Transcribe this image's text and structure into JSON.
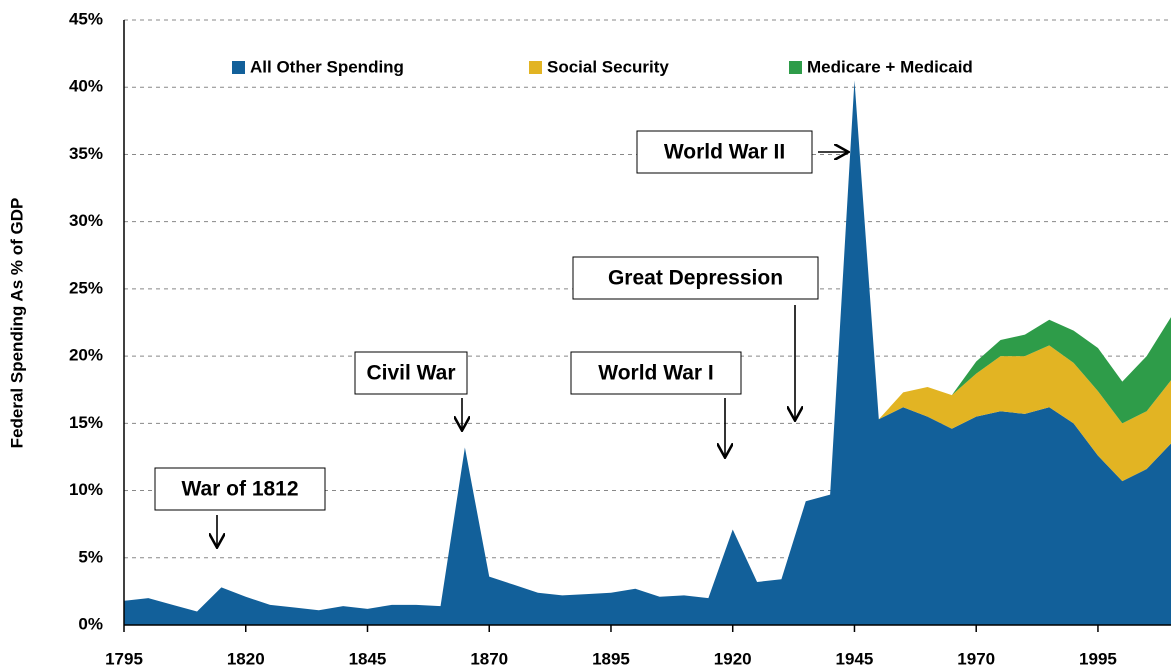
{
  "chart_data": {
    "type": "stacked_area",
    "y_label": "Federal Spending As % of GDP",
    "x": [
      1795,
      1800,
      1805,
      1810,
      1815,
      1820,
      1825,
      1830,
      1835,
      1840,
      1845,
      1850,
      1855,
      1860,
      1865,
      1870,
      1875,
      1880,
      1885,
      1890,
      1895,
      1900,
      1905,
      1910,
      1915,
      1920,
      1925,
      1930,
      1935,
      1940,
      1945,
      1950,
      1955,
      1960,
      1965,
      1970,
      1975,
      1980,
      1985,
      1990,
      1995,
      2000,
      2005,
      2010
    ],
    "series": [
      {
        "name": "All Other Spending",
        "color": "#12609a",
        "values": [
          1.8,
          2.0,
          1.5,
          1.0,
          2.8,
          2.1,
          1.5,
          1.3,
          1.1,
          1.4,
          1.2,
          1.5,
          1.5,
          1.4,
          13.2,
          3.6,
          3.0,
          2.4,
          2.2,
          2.3,
          2.4,
          2.7,
          2.1,
          2.2,
          2.0,
          7.1,
          3.2,
          3.4,
          9.2,
          9.7,
          40.5,
          15.3,
          16.2,
          15.5,
          14.6,
          15.5,
          15.9,
          15.7,
          16.2,
          15.0,
          12.6,
          10.7,
          11.6,
          13.5
        ]
      },
      {
        "name": "Social Security",
        "color": "#e2b423",
        "values": [
          0,
          0,
          0,
          0,
          0,
          0,
          0,
          0,
          0,
          0,
          0,
          0,
          0,
          0,
          0,
          0,
          0,
          0,
          0,
          0,
          0,
          0,
          0,
          0,
          0,
          0,
          0,
          0,
          0,
          0,
          0,
          0,
          1.1,
          2.2,
          2.5,
          3.2,
          4.1,
          4.3,
          4.6,
          4.5,
          4.8,
          4.3,
          4.3,
          4.7
        ]
      },
      {
        "name": "Medicare + Medicaid",
        "color": "#2e9c49",
        "values": [
          0,
          0,
          0,
          0,
          0,
          0,
          0,
          0,
          0,
          0,
          0,
          0,
          0,
          0,
          0,
          0,
          0,
          0,
          0,
          0,
          0,
          0,
          0,
          0,
          0,
          0,
          0,
          0,
          0,
          0,
          0,
          0,
          0,
          0,
          0,
          0.9,
          1.2,
          1.6,
          1.9,
          2.4,
          3.2,
          3.1,
          4.1,
          4.7
        ]
      }
    ],
    "xlim": [
      1795,
      2010
    ],
    "xticks": [
      1795,
      1820,
      1845,
      1870,
      1895,
      1920,
      1945,
      1970,
      1995
    ],
    "ylim": [
      0,
      45
    ],
    "yticks": [
      {
        "value": 0,
        "label": "0%"
      },
      {
        "value": 5,
        "label": "5%"
      },
      {
        "value": 10,
        "label": "10%"
      },
      {
        "value": 15,
        "label": "15%"
      },
      {
        "value": 20,
        "label": "20%"
      },
      {
        "value": 25,
        "label": "25%"
      },
      {
        "value": 30,
        "label": "30%"
      },
      {
        "value": 35,
        "label": "35%"
      },
      {
        "value": 40,
        "label": "40%"
      },
      {
        "value": 45,
        "label": "45%"
      }
    ],
    "grid": true,
    "annotations": [
      "War of 1812",
      "Civil War",
      "World War I",
      "Great Depression",
      "World War II"
    ]
  }
}
